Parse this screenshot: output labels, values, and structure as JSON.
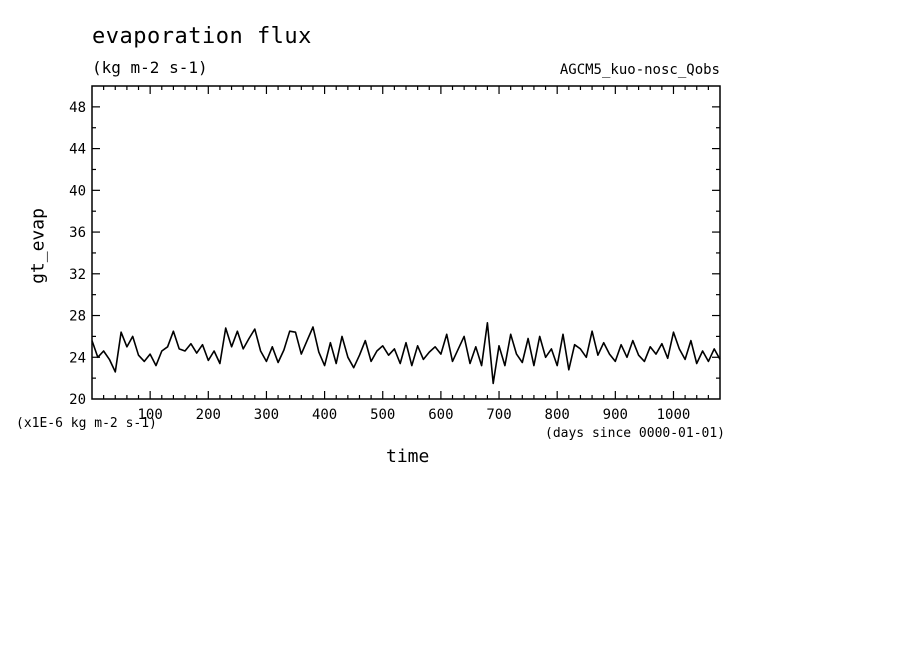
{
  "header": {
    "title": "evaporation flux",
    "units": "(kg m-2 s-1)",
    "run_name": "AGCM5_kuo-nosc_Qobs"
  },
  "footer": {
    "scale_note": "(x1E-6 kg m-2 s-1)",
    "time_origin": "(days since 0000-01-01)"
  },
  "chart_data": {
    "type": "line",
    "title": "evaporation flux",
    "xlabel": "time",
    "ylabel": "gt_evap",
    "xlim": [
      0,
      1080
    ],
    "ylim": [
      20,
      50
    ],
    "x_ticks": [
      100,
      200,
      300,
      400,
      500,
      600,
      700,
      800,
      900,
      1000
    ],
    "y_ticks": [
      20,
      24,
      28,
      32,
      36,
      40,
      44,
      48
    ],
    "line_color": "#000000",
    "grid": false,
    "series": [
      {
        "x": [
          0,
          10,
          20,
          30,
          40,
          50,
          60,
          70,
          80,
          90,
          100,
          110,
          120,
          130,
          140,
          150,
          160,
          170,
          180,
          190,
          200,
          210,
          220,
          230,
          240,
          250,
          260,
          270,
          280,
          290,
          300,
          310,
          320,
          330,
          340,
          350,
          360,
          370,
          380,
          390,
          400,
          410,
          420,
          430,
          440,
          450,
          460,
          470,
          480,
          490,
          500,
          510,
          520,
          530,
          540,
          550,
          560,
          570,
          580,
          590,
          600,
          610,
          620,
          630,
          640,
          650,
          660,
          670,
          680,
          690,
          700,
          710,
          720,
          730,
          740,
          750,
          760,
          770,
          780,
          790,
          800,
          810,
          820,
          830,
          840,
          850,
          860,
          870,
          880,
          890,
          900,
          910,
          920,
          930,
          940,
          950,
          960,
          970,
          980,
          990,
          1000,
          1010,
          1020,
          1030,
          1040,
          1050,
          1060,
          1070,
          1080
        ],
        "values": [
          25.6,
          24.0,
          24.6,
          23.8,
          22.6,
          26.4,
          25.0,
          26.0,
          24.2,
          23.6,
          24.3,
          23.2,
          24.6,
          25.0,
          26.5,
          24.8,
          24.6,
          25.3,
          24.4,
          25.2,
          23.7,
          24.6,
          23.4,
          26.8,
          25.0,
          26.5,
          24.8,
          25.8,
          26.7,
          24.6,
          23.6,
          25.0,
          23.5,
          24.7,
          26.5,
          26.4,
          24.3,
          25.6,
          26.9,
          24.5,
          23.2,
          25.4,
          23.4,
          26.0,
          24.0,
          23.0,
          24.2,
          25.6,
          23.6,
          24.6,
          25.1,
          24.2,
          24.8,
          23.4,
          25.4,
          23.2,
          25.1,
          23.8,
          24.5,
          25.0,
          24.3,
          26.2,
          23.6,
          24.8,
          26.0,
          23.4,
          25.0,
          23.2,
          27.3,
          21.5,
          25.1,
          23.2,
          26.2,
          24.3,
          23.5,
          25.8,
          23.2,
          26.0,
          24.0,
          24.8,
          23.2,
          26.2,
          22.8,
          25.2,
          24.8,
          24.0,
          26.5,
          24.2,
          25.4,
          24.3,
          23.6,
          25.2,
          24.0,
          25.6,
          24.2,
          23.6,
          25.0,
          24.3,
          25.3,
          23.9,
          26.4,
          24.8,
          23.8,
          25.6,
          23.4,
          24.6,
          23.6,
          24.8,
          23.8
        ]
      }
    ]
  }
}
